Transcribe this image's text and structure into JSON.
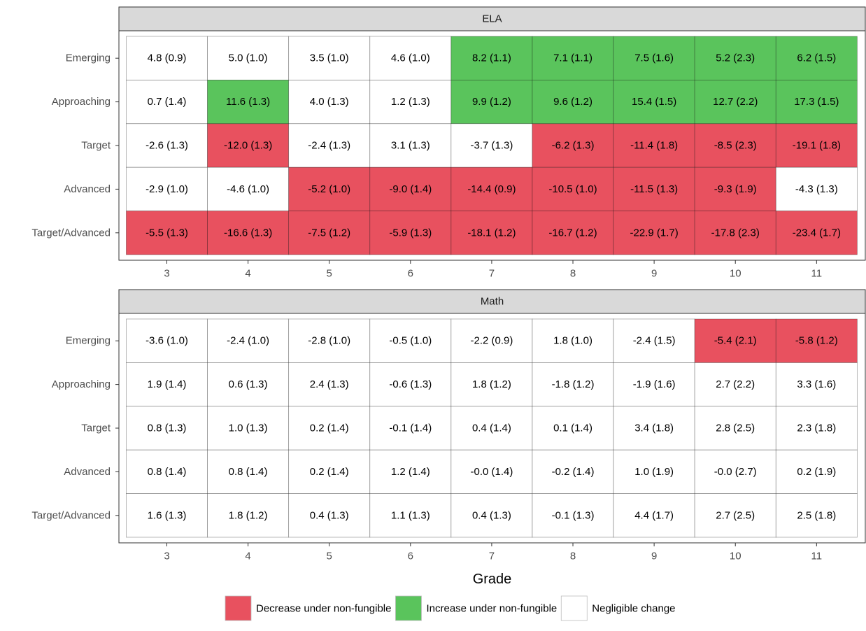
{
  "chart_data": [
    {
      "type": "heatmap",
      "title": "ELA",
      "x": [
        3,
        4,
        5,
        6,
        7,
        8,
        9,
        10,
        11
      ],
      "xlim": [
        2.41,
        11.6
      ],
      "xticks": [
        3,
        4,
        5,
        6,
        7,
        8,
        9,
        10,
        11
      ],
      "y_categories": [
        "Emerging",
        "Approaching",
        "Target",
        "Advanced",
        "Target/Advanced"
      ],
      "cells": [
        {
          "values": [
            4.8,
            5.0,
            3.5,
            4.6,
            8.2,
            7.1,
            7.5,
            5.2,
            6.2
          ],
          "errors": [
            0.9,
            1.0,
            1.0,
            1.0,
            1.1,
            1.1,
            1.6,
            2.3,
            1.5
          ],
          "value_labels": [
            "4.8 (0.9)",
            "5.0 (1.0)",
            "3.5 (1.0)",
            "4.6 (1.0)",
            "8.2 (1.1)",
            "7.1 (1.1)",
            "7.5 (1.6)",
            "5.2 (2.3)",
            "6.2 (1.5)"
          ],
          "colors": [
            "#ffffff",
            "#ffffff",
            "#ffffff",
            "#ffffff",
            "#5ac45c",
            "#5ac45c",
            "#5ac45c",
            "#5ac45c",
            "#5ac45c"
          ]
        },
        {
          "values": [
            0.7,
            11.6,
            4.0,
            1.2,
            9.9,
            9.6,
            15.4,
            12.7,
            17.3
          ],
          "errors": [
            1.4,
            1.3,
            1.3,
            1.3,
            1.2,
            1.2,
            1.5,
            2.2,
            1.5
          ],
          "value_labels": [
            "0.7 (1.4)",
            "11.6 (1.3)",
            "4.0 (1.3)",
            "1.2 (1.3)",
            "9.9 (1.2)",
            "9.6 (1.2)",
            "15.4 (1.5)",
            "12.7 (2.2)",
            "17.3 (1.5)"
          ],
          "colors": [
            "#ffffff",
            "#5ac45c",
            "#ffffff",
            "#ffffff",
            "#5ac45c",
            "#5ac45c",
            "#5ac45c",
            "#5ac45c",
            "#5ac45c"
          ]
        },
        {
          "values": [
            -2.6,
            -12.0,
            -2.4,
            3.1,
            -3.7,
            -6.2,
            -11.4,
            -8.5,
            -19.1
          ],
          "errors": [
            1.3,
            1.3,
            1.3,
            1.3,
            1.3,
            1.3,
            1.8,
            2.3,
            1.8
          ],
          "value_labels": [
            "-2.6 (1.3)",
            "-12.0 (1.3)",
            "-2.4 (1.3)",
            "3.1 (1.3)",
            "-3.7 (1.3)",
            "-6.2 (1.3)",
            "-11.4 (1.8)",
            "-8.5 (2.3)",
            "-19.1 (1.8)"
          ],
          "colors": [
            "#ffffff",
            "#e8515f",
            "#ffffff",
            "#ffffff",
            "#ffffff",
            "#e8515f",
            "#e8515f",
            "#e8515f",
            "#e8515f"
          ]
        },
        {
          "values": [
            -2.9,
            -4.6,
            -5.2,
            -9.0,
            -14.4,
            -10.5,
            -11.5,
            -9.3,
            -4.3
          ],
          "errors": [
            1.0,
            1.0,
            1.0,
            1.4,
            0.9,
            1.0,
            1.3,
            1.9,
            1.3
          ],
          "value_labels": [
            "-2.9 (1.0)",
            "-4.6 (1.0)",
            "-5.2 (1.0)",
            "-9.0 (1.4)",
            "-14.4 (0.9)",
            "-10.5 (1.0)",
            "-11.5 (1.3)",
            "-9.3 (1.9)",
            "-4.3 (1.3)"
          ],
          "colors": [
            "#ffffff",
            "#ffffff",
            "#e8515f",
            "#e8515f",
            "#e8515f",
            "#e8515f",
            "#e8515f",
            "#e8515f",
            "#ffffff"
          ]
        },
        {
          "values": [
            -5.5,
            -16.6,
            -7.5,
            -5.9,
            -18.1,
            -16.7,
            -22.9,
            -17.8,
            -23.4
          ],
          "errors": [
            1.3,
            1.3,
            1.2,
            1.3,
            1.2,
            1.2,
            1.7,
            2.3,
            1.7
          ],
          "value_labels": [
            "-5.5 (1.3)",
            "-16.6 (1.3)",
            "-7.5 (1.2)",
            "-5.9 (1.3)",
            "-18.1 (1.2)",
            "-16.7 (1.2)",
            "-22.9 (1.7)",
            "-17.8 (2.3)",
            "-23.4 (1.7)"
          ],
          "colors": [
            "#e8515f",
            "#e8515f",
            "#e8515f",
            "#e8515f",
            "#e8515f",
            "#e8515f",
            "#e8515f",
            "#e8515f",
            "#e8515f"
          ]
        }
      ]
    },
    {
      "type": "heatmap",
      "title": "Math",
      "xlabel": "Grade",
      "x": [
        3,
        4,
        5,
        6,
        7,
        8,
        9,
        10,
        11
      ],
      "xlim": [
        2.41,
        11.6
      ],
      "xticks": [
        3,
        4,
        5,
        6,
        7,
        8,
        9,
        10,
        11
      ],
      "y_categories": [
        "Emerging",
        "Approaching",
        "Target",
        "Advanced",
        "Target/Advanced"
      ],
      "cells": [
        {
          "values": [
            -3.6,
            -2.4,
            -2.8,
            -0.5,
            -2.2,
            1.8,
            -2.4,
            -5.4,
            -5.8
          ],
          "errors": [
            1.0,
            1.0,
            1.0,
            1.0,
            0.9,
            1.0,
            1.5,
            2.1,
            1.2
          ],
          "value_labels": [
            "-3.6 (1.0)",
            "-2.4 (1.0)",
            "-2.8 (1.0)",
            "-0.5 (1.0)",
            "-2.2 (0.9)",
            "1.8 (1.0)",
            "-2.4 (1.5)",
            "-5.4 (2.1)",
            "-5.8 (1.2)"
          ],
          "colors": [
            "#ffffff",
            "#ffffff",
            "#ffffff",
            "#ffffff",
            "#ffffff",
            "#ffffff",
            "#ffffff",
            "#e8515f",
            "#e8515f"
          ]
        },
        {
          "values": [
            1.9,
            0.6,
            2.4,
            -0.6,
            1.8,
            -1.8,
            -1.9,
            2.7,
            3.3
          ],
          "errors": [
            1.4,
            1.3,
            1.3,
            1.3,
            1.2,
            1.2,
            1.6,
            2.2,
            1.6
          ],
          "value_labels": [
            "1.9 (1.4)",
            "0.6 (1.3)",
            "2.4 (1.3)",
            "-0.6 (1.3)",
            "1.8 (1.2)",
            "-1.8 (1.2)",
            "-1.9 (1.6)",
            "2.7 (2.2)",
            "3.3 (1.6)"
          ],
          "colors": [
            "#ffffff",
            "#ffffff",
            "#ffffff",
            "#ffffff",
            "#ffffff",
            "#ffffff",
            "#ffffff",
            "#ffffff",
            "#ffffff"
          ]
        },
        {
          "values": [
            0.8,
            1.0,
            0.2,
            -0.1,
            0.4,
            0.1,
            3.4,
            2.8,
            2.3
          ],
          "errors": [
            1.3,
            1.3,
            1.4,
            1.4,
            1.4,
            1.4,
            1.8,
            2.5,
            1.8
          ],
          "value_labels": [
            "0.8 (1.3)",
            "1.0 (1.3)",
            "0.2 (1.4)",
            "-0.1 (1.4)",
            "0.4 (1.4)",
            "0.1 (1.4)",
            "3.4 (1.8)",
            "2.8 (2.5)",
            "2.3 (1.8)"
          ],
          "colors": [
            "#ffffff",
            "#ffffff",
            "#ffffff",
            "#ffffff",
            "#ffffff",
            "#ffffff",
            "#ffffff",
            "#ffffff",
            "#ffffff"
          ]
        },
        {
          "values": [
            0.8,
            0.8,
            0.2,
            1.2,
            -0.0,
            -0.2,
            1.0,
            -0.0,
            0.2
          ],
          "errors": [
            1.4,
            1.4,
            1.4,
            1.4,
            1.4,
            1.4,
            1.9,
            2.7,
            1.9
          ],
          "value_labels": [
            "0.8 (1.4)",
            "0.8 (1.4)",
            "0.2 (1.4)",
            "1.2 (1.4)",
            "-0.0 (1.4)",
            "-0.2 (1.4)",
            "1.0 (1.9)",
            "-0.0 (2.7)",
            "0.2 (1.9)"
          ],
          "colors": [
            "#ffffff",
            "#ffffff",
            "#ffffff",
            "#ffffff",
            "#ffffff",
            "#ffffff",
            "#ffffff",
            "#ffffff",
            "#ffffff"
          ]
        },
        {
          "values": [
            1.6,
            1.8,
            0.4,
            1.1,
            0.4,
            -0.1,
            4.4,
            2.7,
            2.5
          ],
          "errors": [
            1.3,
            1.2,
            1.3,
            1.3,
            1.3,
            1.3,
            1.7,
            2.5,
            1.8
          ],
          "value_labels": [
            "1.6 (1.3)",
            "1.8 (1.2)",
            "0.4 (1.3)",
            "1.1 (1.3)",
            "0.4 (1.3)",
            "-0.1 (1.3)",
            "4.4 (1.7)",
            "2.7 (2.5)",
            "2.5 (1.8)"
          ],
          "colors": [
            "#ffffff",
            "#ffffff",
            "#ffffff",
            "#ffffff",
            "#ffffff",
            "#ffffff",
            "#ffffff",
            "#ffffff",
            "#ffffff"
          ]
        }
      ],
      "legend": [
        {
          "name": "Decrease under non-fungible",
          "color": "#e8515f"
        },
        {
          "name": "Increase under non-fungible",
          "color": "#5ac45c"
        },
        {
          "name": "Negligible change",
          "color": "#ffffff"
        }
      ]
    }
  ]
}
